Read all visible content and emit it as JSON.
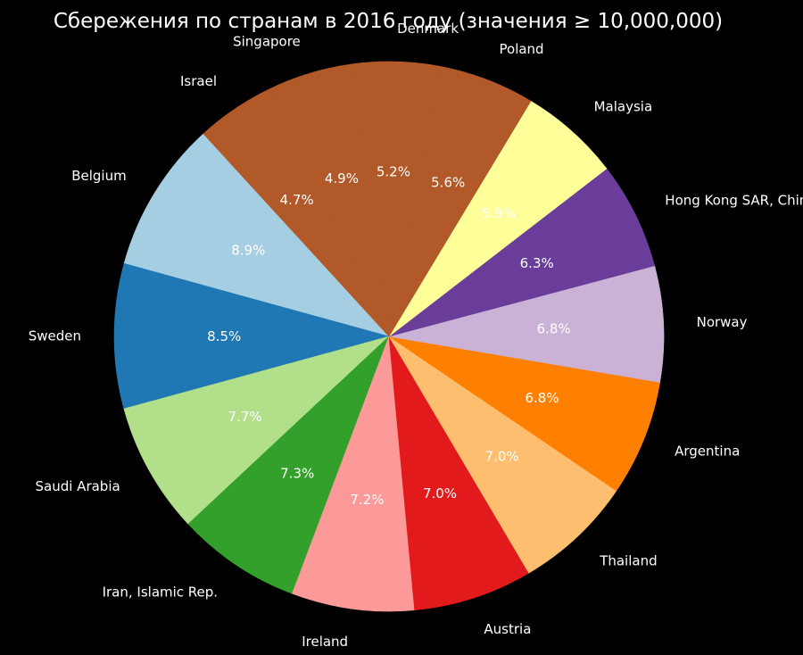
{
  "chart_data": {
    "type": "pie",
    "title": "Сбережения по странам в 2016 году (значения ≥ 10,000,000)",
    "slices": [
      {
        "label": "Belgium",
        "percent": 8.9,
        "color": "#a6cee3"
      },
      {
        "label": "Sweden",
        "percent": 8.5,
        "color": "#1f78b4"
      },
      {
        "label": "Saudi Arabia",
        "percent": 7.7,
        "color": "#b2df8a"
      },
      {
        "label": "Iran, Islamic Rep.",
        "percent": 7.3,
        "color": "#33a02c"
      },
      {
        "label": "Ireland",
        "percent": 7.2,
        "color": "#fb9a99"
      },
      {
        "label": "Austria",
        "percent": 7.0,
        "color": "#e31a1c"
      },
      {
        "label": "Thailand",
        "percent": 7.0,
        "color": "#fdbf6f"
      },
      {
        "label": "Argentina",
        "percent": 6.8,
        "color": "#ff7f00"
      },
      {
        "label": "Norway",
        "percent": 6.8,
        "color": "#cab2d6"
      },
      {
        "label": "Hong Kong SAR, China",
        "percent": 6.3,
        "color": "#6a3d9a"
      },
      {
        "label": "Malaysia",
        "percent": 5.9,
        "color": "#ffff99"
      },
      {
        "label": "Poland",
        "percent": 5.6,
        "color": "#b15928"
      },
      {
        "label": "Denmark",
        "percent": 5.2,
        "color": "#b15928"
      },
      {
        "label": "Singapore",
        "percent": 4.9,
        "color": "#b15928"
      },
      {
        "label": "Israel",
        "percent": 4.7,
        "color": "#b15928"
      }
    ],
    "start_angle_deg": 132.5,
    "direction": "counterclockwise",
    "background": "#000000",
    "text_color": "#ffffff"
  }
}
